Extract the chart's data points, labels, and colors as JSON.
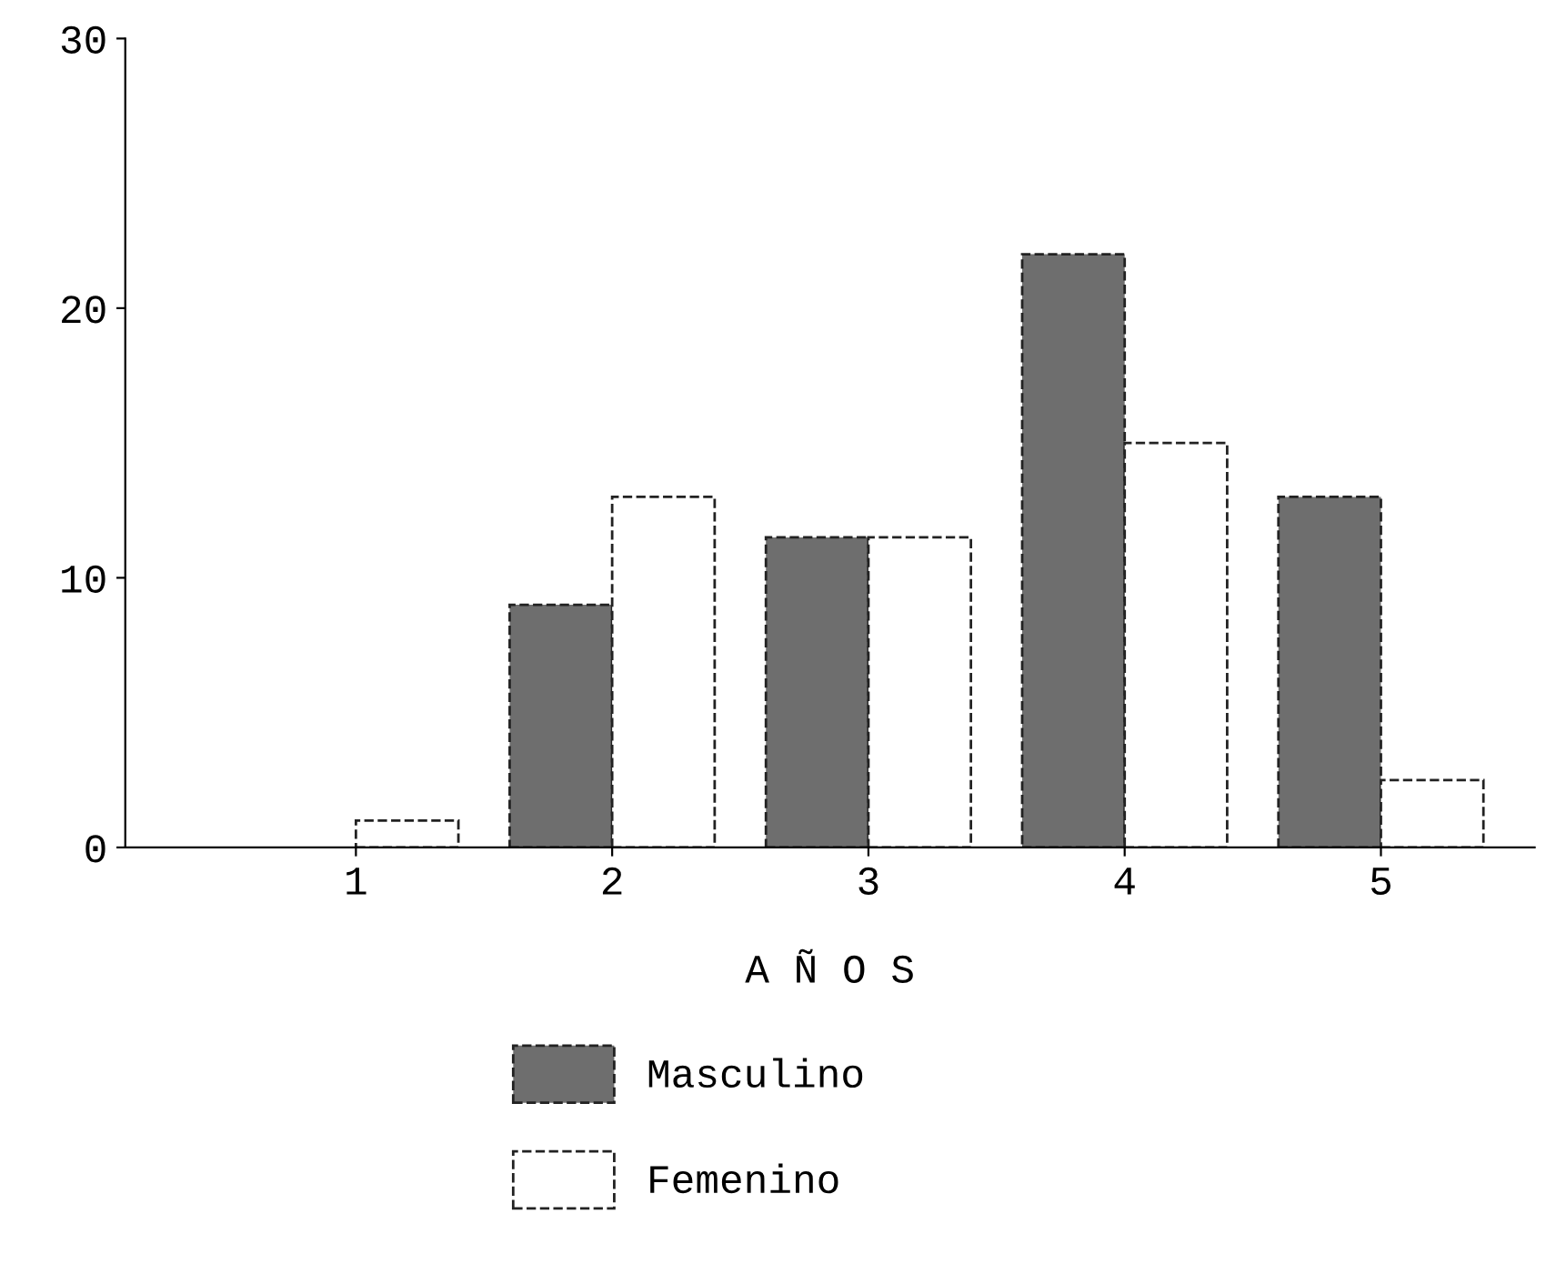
{
  "chart_data": {
    "type": "bar",
    "categories": [
      "1",
      "2",
      "3",
      "4",
      "5"
    ],
    "series": [
      {
        "name": "Masculino",
        "color": "#6e6e6e",
        "values": [
          null,
          9,
          11.5,
          22,
          13
        ]
      },
      {
        "name": "Femenino",
        "color": "#ffffff",
        "values": [
          1,
          13,
          11.5,
          15,
          2.5
        ]
      }
    ],
    "xlabel": "A Ñ O S",
    "ylim": [
      0,
      30
    ],
    "yticks": [
      0,
      10,
      20,
      30
    ],
    "grid": false,
    "legend": "bottom"
  }
}
